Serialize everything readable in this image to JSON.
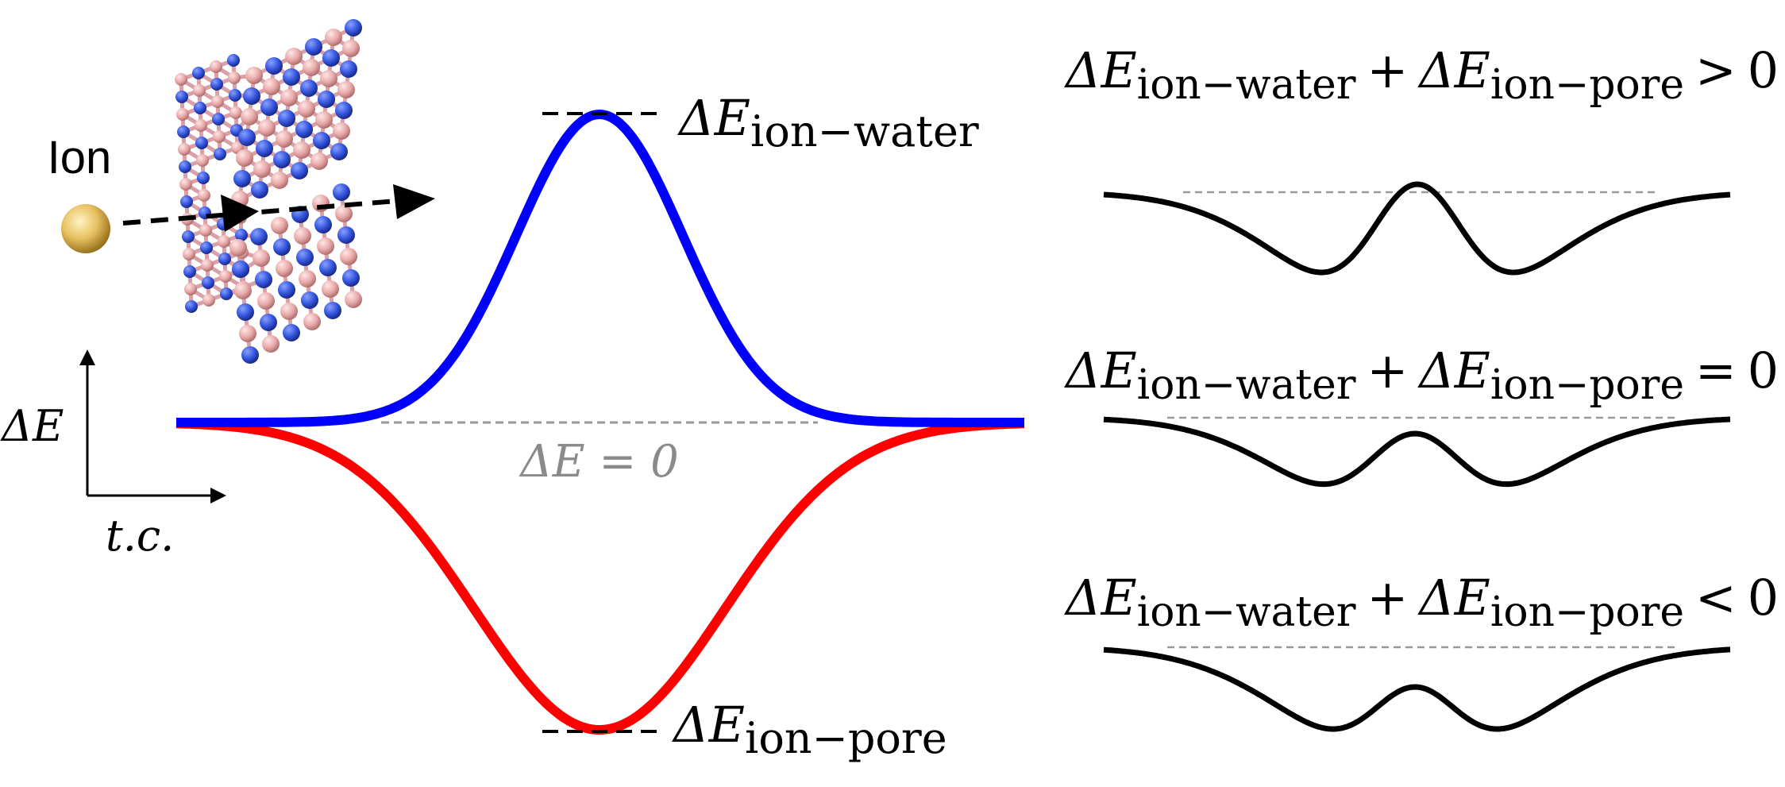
{
  "figure": {
    "ion_label": "Ion",
    "axes": {
      "y_label": "ΔE",
      "x_label": "t.c."
    },
    "zero_line_label": "ΔE = 0",
    "peak_label": {
      "symbol": "ΔE",
      "subscript": "ion−water"
    },
    "well_label": {
      "symbol": "ΔE",
      "subscript": "ion−pore"
    },
    "curve_colors": {
      "ion_water": "#0000ff",
      "ion_pore": "#ff0000",
      "panels": "#000000",
      "zero_line": "#999999",
      "atom_a": "#3355dd",
      "atom_b": "#e8a8a8",
      "ion": "#e8c060"
    },
    "panels": [
      {
        "relation": ">",
        "value": "0",
        "t1": "ΔE",
        "s1": "ion−water",
        "op": "+",
        "t2": "ΔE",
        "s2": "ion−pore"
      },
      {
        "relation": "=",
        "value": "0",
        "t1": "ΔE",
        "s1": "ion−water",
        "op": "+",
        "t2": "ΔE",
        "s2": "ion−pore"
      },
      {
        "relation": "<",
        "value": "0",
        "t1": "ΔE",
        "s1": "ion−water",
        "op": "+",
        "t2": "ΔE",
        "s2": "ion−pore"
      }
    ]
  }
}
